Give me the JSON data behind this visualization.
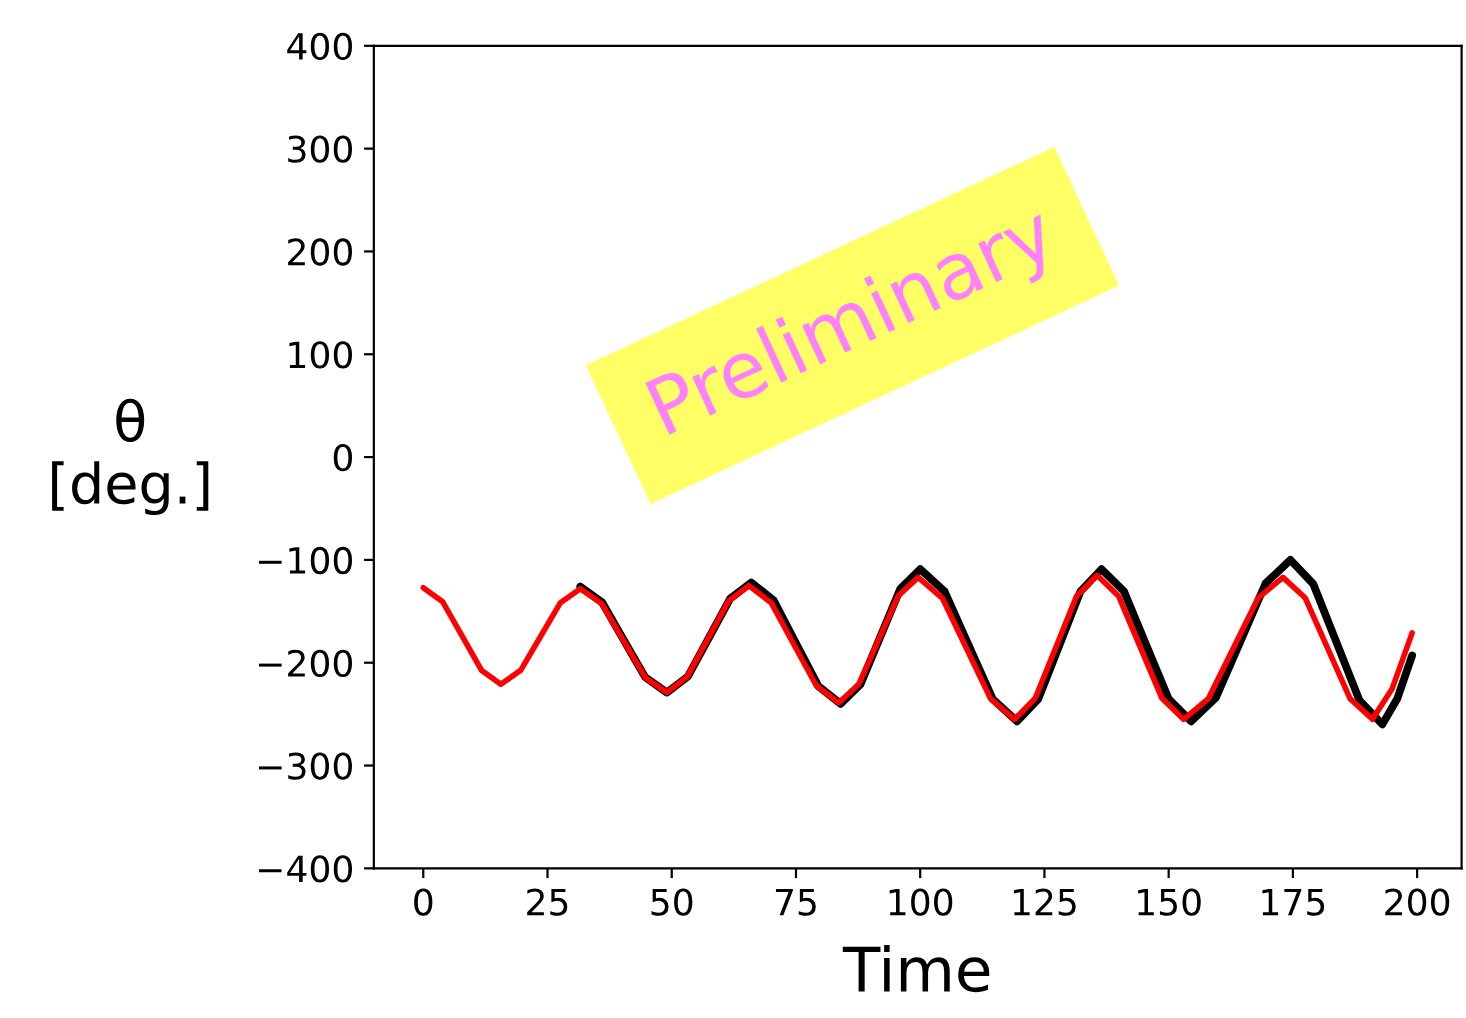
{
  "chart_data": {
    "type": "line",
    "xlabel": "Time",
    "ylabel": "θ\n[deg.]",
    "xlim": [
      -9.95,
      208.95
    ],
    "xticks": [
      0,
      25,
      50,
      75,
      100,
      125,
      150,
      175,
      200
    ],
    "ylim": [
      -400,
      400
    ],
    "yticks": [
      {
        "value": -400,
        "label": "−400"
      },
      {
        "value": -300,
        "label": "−300"
      },
      {
        "value": -200,
        "label": "−200"
      },
      {
        "value": -100,
        "label": "−100"
      },
      0,
      100,
      200,
      300,
      400
    ],
    "grid": false,
    "legend": false,
    "marker": "none",
    "line_style": "solid",
    "annotations": [
      "Preliminary"
    ],
    "series": [
      {
        "color": "#000000",
        "x": [
          31.6,
          35.95,
          40.3,
          44.65,
          49,
          53.25,
          57.5,
          61.75,
          66,
          70.5,
          75,
          79.5,
          84,
          88,
          92,
          96,
          100,
          104.9,
          109.75,
          114.6,
          119.5,
          123.75,
          128,
          132.25,
          136.5,
          141,
          145.5,
          150,
          154.5,
          159.5,
          164.5,
          169.5,
          174.5,
          179.1,
          183.75,
          188.4,
          193,
          196,
          199
        ],
        "values": [
          -126,
          -141,
          -177.5,
          -214,
          -229,
          -213.4,
          -175.5,
          -137.6,
          -122,
          -139.2,
          -181,
          -222.8,
          -240,
          -220.9,
          -174.5,
          -128.1,
          -109,
          -130.6,
          -183,
          -235.4,
          -257,
          -235.4,
          -183,
          -130.6,
          -109,
          -130.6,
          -183,
          -235.4,
          -257,
          -234.1,
          -178.5,
          -122.9,
          -100,
          -123.4,
          -180,
          -236.6,
          -260,
          -235,
          -193
        ]
      },
      {
        "color": "#ff0000",
        "x": [
          0,
          3.9,
          7.8,
          11.7,
          15.6,
          19.6,
          23.6,
          27.6,
          31.6,
          35.95,
          40.3,
          44.65,
          49,
          53.1,
          57.25,
          61.4,
          65.5,
          70,
          74.55,
          79.1,
          83.6,
          87.6,
          91.6,
          95.6,
          99.6,
          104.45,
          109.3,
          114.15,
          119,
          123.15,
          127.3,
          131.45,
          135.6,
          139.95,
          144.3,
          148.65,
          153,
          158,
          163,
          168,
          173,
          177.5,
          182,
          186.5,
          191,
          195,
          199
        ],
        "values": [
          -127,
          -140.7,
          -174,
          -207.3,
          -221,
          -207.4,
          -174.5,
          -141.6,
          -128,
          -142.7,
          -178.5,
          -214.3,
          -229,
          -213.8,
          -177,
          -140.2,
          -125,
          -141.6,
          -182,
          -222.4,
          -239,
          -221.2,
          -178,
          -134.8,
          -117,
          -137.1,
          -186,
          -234.9,
          -255,
          -234.6,
          -185,
          -135.4,
          -115,
          -135.4,
          -185,
          -234.6,
          -255,
          -234.9,
          -186,
          -137.1,
          -117,
          -137.1,
          -186,
          -234.9,
          -255,
          -225,
          -171
        ]
      }
    ]
  }
}
